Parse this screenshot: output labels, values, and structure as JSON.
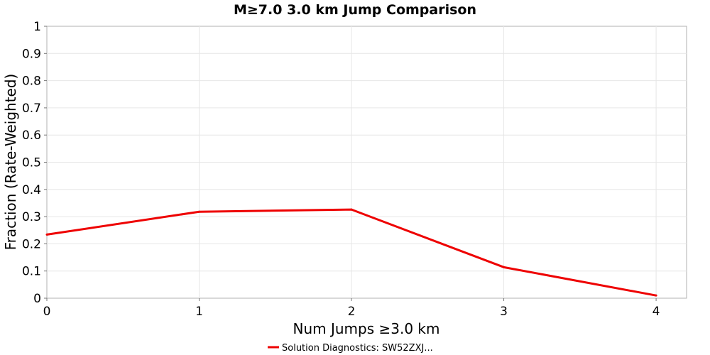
{
  "chart_data": {
    "type": "line",
    "title": "M≥7.0 3.0 km Jump Comparison",
    "xlabel": "Num Jumps ≥3.0 km",
    "ylabel": "Fraction (Rate-Weighted)",
    "xlim": [
      0,
      4.2
    ],
    "ylim": [
      0,
      1
    ],
    "x_ticks": [
      "0",
      "1",
      "2",
      "3",
      "4"
    ],
    "y_ticks": [
      "0",
      "0.1",
      "0.2",
      "0.3",
      "0.4",
      "0.5",
      "0.6",
      "0.7",
      "0.8",
      "0.9",
      "1"
    ],
    "grid": true,
    "legend_position": "bottom",
    "series": [
      {
        "name": "Solution Diagnostics: SW52ZXJ...",
        "color": "#ee0000",
        "x": [
          0,
          1,
          2,
          3,
          4
        ],
        "values": [
          0.234,
          0.318,
          0.326,
          0.114,
          0.01
        ]
      }
    ]
  }
}
